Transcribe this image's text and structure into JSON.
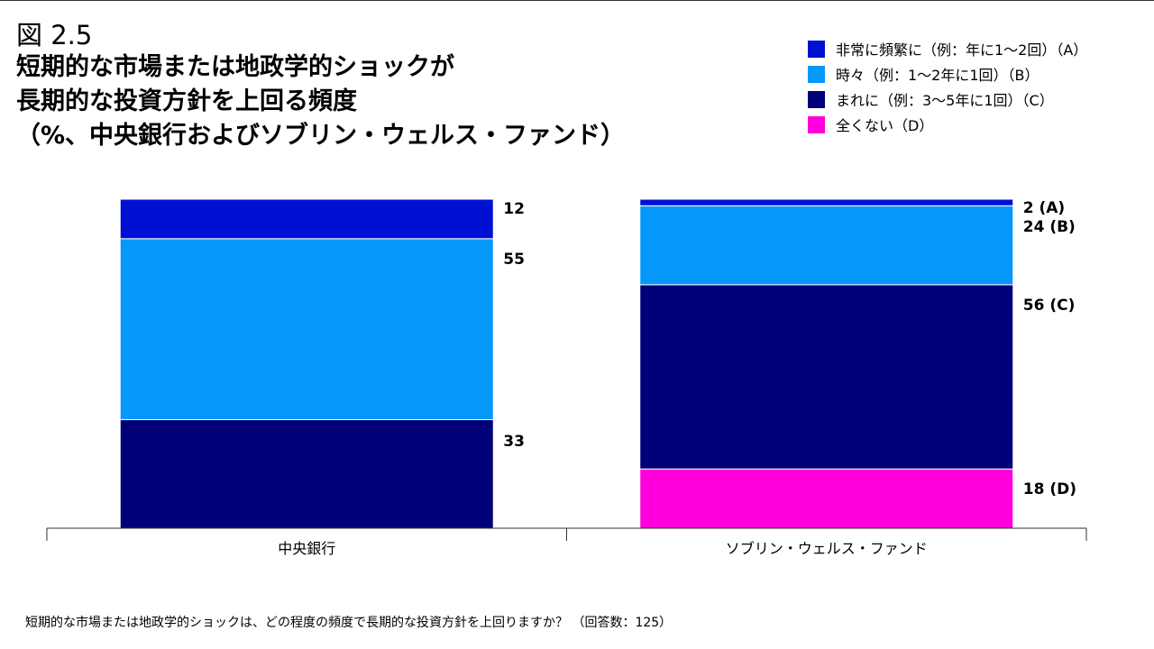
{
  "figure_label": "図 2.5",
  "footnote": "短期的な市場または地政学的ショックは、どの程度の頻度で長期的な投資方針を上回りますか？ （回答数：125）",
  "chart_data": {
    "type": "bar",
    "stacked": true,
    "title": "短期的な市場または地政学的ショックが\n長期的な投資方針を上回る頻度\n（%、中央銀行およびソブリン・ウェルス・ファンド）",
    "categories": [
      "中央銀行",
      "ソブリン・ウェルス・ファンド"
    ],
    "series": [
      {
        "name": "全くない（D）",
        "color": "#FF00DD",
        "values": [
          0,
          18
        ]
      },
      {
        "name": "まれに（例：3～5年に1回）（C）",
        "color": "#000078",
        "values": [
          33,
          56
        ]
      },
      {
        "name": "時々（例：1～2年に1回）（B）",
        "color": "#0598FA",
        "values": [
          55,
          24
        ]
      },
      {
        "name": "非常に頻繁に（例：年に1～2回）（A）",
        "color": "#0010D2",
        "values": [
          12,
          2
        ]
      }
    ],
    "data_labels": [
      [
        "",
        "18 (D)"
      ],
      [
        "33",
        "56 (C)"
      ],
      [
        "55",
        "24 (B)"
      ],
      [
        "12",
        "2 (A)"
      ]
    ],
    "legend_order": [
      3,
      2,
      1,
      0
    ],
    "legend_placement": "top-right",
    "ylim": [
      0,
      100
    ],
    "grid": false,
    "xlabel": "",
    "ylabel": ""
  }
}
